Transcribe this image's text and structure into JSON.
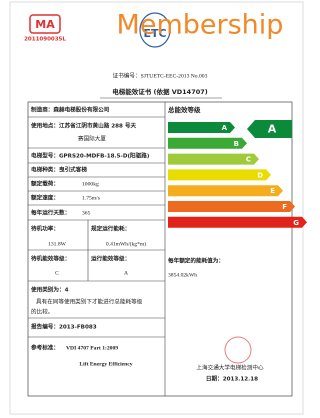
{
  "header": {
    "overlay": "Membership",
    "logo_left": "MA",
    "logo_left_code": "2011090035L",
    "logo_center": "ETC",
    "certificate_number": "证书编号：SJTUETC-EEC-2013 No.003",
    "title": "电梯能效证书 (依据 VD14707)"
  },
  "fields": {
    "manufacturer": "制造商：森赫电梯股份有限公司",
    "location_1": "使用地点：江苏省江阴市黄山路 288 号天",
    "location_2": "赛国际大厦",
    "model": "电梯型号：GPRS20-MDFB-18.5-D(阳驱路)",
    "kind": "电梯种类：曳引式客梯",
    "load_label": "额定载荷：",
    "load_value": "1000kg",
    "speed_label": "额定速度：",
    "speed_value": "1.75m/s",
    "days_label": "每年运行天数：",
    "days_value": "365",
    "standby_power_label": "待机功率：",
    "standby_power_value": "131.8W",
    "running_energy_label": "规定运行能耗：",
    "running_energy_value": "0.41mWh/(kg*m)",
    "standby_class_label": "待机能效等级：",
    "standby_class_value": "C",
    "running_class_label": "运行能效等级：",
    "running_class_value": "A",
    "usage_category": "使用类别为：4",
    "usage_note_1": "具有在同等使用类别下才能进行总能耗等级",
    "usage_note_2": "的比较。",
    "report_number": "报告编号：2013-FB083",
    "standard_label": "参考标准：",
    "standard_value": "VDI 4707 Part 1:2009",
    "standard_name": "Lift Energy Efficiency"
  },
  "rating": {
    "title": "总能效等级",
    "classes": [
      "A",
      "B",
      "C",
      "D",
      "E",
      "F",
      "G"
    ],
    "overall_class": "A",
    "annual_energy_label": "每年额定的能耗值为：",
    "annual_energy_value": "3854.02kWh",
    "issuer": "上海交通大学电梯检测中心",
    "date": "日期：2013.12.18"
  }
}
